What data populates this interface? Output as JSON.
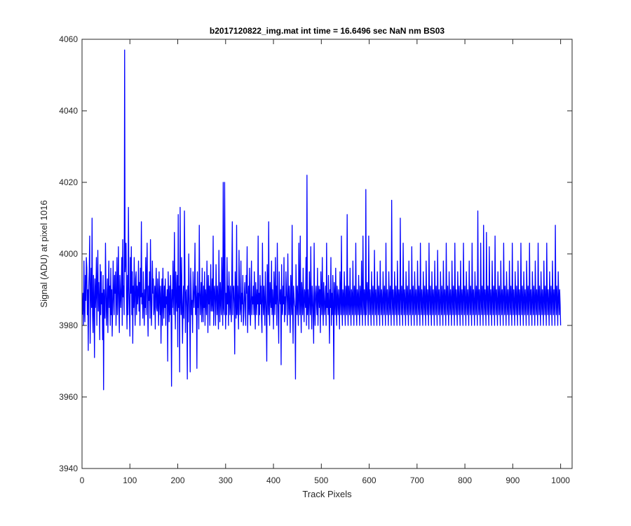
{
  "chart_data": {
    "type": "line",
    "title": "b2017120822_img.mat int time = 16.6496 sec  NaN nm BS03",
    "xlabel": "Track Pixels",
    "ylabel": "Signal (ADU) at pixel 1016",
    "xlim": [
      0,
      1024
    ],
    "ylim": [
      3940,
      4060
    ],
    "xticks": [
      0,
      100,
      200,
      300,
      400,
      500,
      600,
      700,
      800,
      900,
      1000
    ],
    "yticks": [
      3940,
      3960,
      3980,
      4000,
      4020,
      4040,
      4060
    ],
    "grid": false,
    "box": true,
    "series": [
      {
        "color": "#0000ff",
        "x_start": 1,
        "x_step": 1,
        "values": [
          3983,
          3989,
          3980,
          3998,
          3985,
          3981,
          3994,
          3987,
          3999,
          3996,
          3983,
          3990,
          3973,
          3991,
          3995,
          4005,
          3975,
          3989,
          3996,
          3985,
          4010,
          3983,
          3978,
          3994,
          3987,
          3971,
          3993,
          3985,
          3989,
          3999,
          3980,
          3991,
          4001,
          3984,
          3992,
          3987,
          3976,
          3997,
          3983,
          3995,
          3986,
          3989,
          3976,
          3994,
          3962,
          3990,
          3985,
          3982,
          4003,
          3991,
          3980,
          3986,
          3993,
          3978,
          3989,
          3998,
          3985,
          3991,
          3980,
          3996,
          3983,
          3990,
          3977,
          3985,
          3998,
          3988,
          3983,
          3994,
          3989,
          3995,
          3980,
          3987,
          3999,
          3983,
          3990,
          4002,
          3985,
          3978,
          3994,
          3989,
          3985,
          3991,
          3999,
          3980,
          4004,
          3988,
          3991,
          3983,
          4057,
          3995,
          3999,
          4003,
          3987,
          3979,
          3994,
          3983,
          4013,
          3991,
          3985,
          3977,
          3999,
          3989,
          4002,
          3983,
          3995,
          3975,
          3991,
          3985,
          3999,
          3987,
          3980,
          3993,
          3995,
          3983,
          3991,
          3986,
          3989,
          3998,
          3984,
          3992,
          3980,
          3996,
          3988,
          4009,
          3986,
          3989,
          3982,
          3995,
          3987,
          3980,
          3990,
          3985,
          3999,
          3983,
          3993,
          4003,
          3985,
          3977,
          3991,
          3987,
          3995,
          3982,
          4004,
          3989,
          3980,
          3986,
          3998,
          3989,
          3993,
          3983,
          3986,
          3991,
          3979,
          3990,
          3996,
          3985,
          3984,
          3993,
          3986,
          3980,
          3995,
          3988,
          3983,
          3991,
          3975,
          3987,
          3993,
          3980,
          3996,
          3986,
          3982,
          3991,
          3985,
          3993,
          3980,
          3988,
          3986,
          3990,
          3970,
          3995,
          3988,
          3981,
          3991,
          3983,
          3994,
          3987,
          3963,
          3990,
          3985,
          3998,
          3988,
          3983,
          4006,
          3990,
          3979,
          3995,
          3988,
          3984,
          3994,
          3974,
          4011,
          3985,
          3991,
          3967,
          4013,
          3988,
          3983,
          3999,
          3985,
          3975,
          3986,
          3991,
          3982,
          4012,
          3996,
          3978,
          3989,
          3990,
          3985,
          3965,
          3991,
          3981,
          4000,
          3989,
          3983,
          3967,
          3996,
          3990,
          3983,
          3987,
          3978,
          3995,
          3989,
          3985,
          3990,
          4003,
          3983,
          3991,
          3987,
          3968,
          3995,
          3985,
          3989,
          3979,
          4008,
          3990,
          3983,
          3988,
          3992,
          3981,
          3996,
          3986,
          3981,
          3991,
          3985,
          3995,
          3980,
          3990,
          3987,
          3983,
          3998,
          3989,
          3978,
          3994,
          3986,
          3991,
          3980,
          3989,
          3997,
          3984,
          3986,
          3993,
          3984,
          4005,
          3980,
          3989,
          3991,
          3986,
          3980,
          3997,
          3989,
          3983,
          3991,
          3986,
          3979,
          4001,
          3988,
          3981,
          3992,
          3987,
          3983,
          3999,
          3989,
          3980,
          4020,
          3985,
          3983,
          4020,
          3992,
          3979,
          3989,
          3983,
          3999,
          3986,
          3991,
          3980,
          3995,
          3988,
          3983,
          3991,
          3986,
          3981,
          3995,
          4009,
          3983,
          3989,
          3991,
          3986,
          3972,
          3995,
          3989,
          3982,
          4008,
          3983,
          3991,
          3986,
          3979,
          4001,
          3990,
          3983,
          3985,
          3998,
          3981,
          3989,
          3986,
          3994,
          3980,
          3983,
          3988,
          3992,
          3985,
          3980,
          3994,
          3989,
          4002,
          3978,
          3986,
          3991,
          3983,
          3996,
          3985,
          3980,
          3989,
          3998,
          3983,
          3988,
          3986,
          3991,
          3983,
          3995,
          3986,
          3979,
          3992,
          3988,
          3983,
          3990,
          3986,
          4005,
          3980,
          3989,
          3983,
          3994,
          3986,
          3991,
          3982,
          3978,
          4003,
          3988,
          3983,
          3991,
          3986,
          3980,
          3995,
          3988,
          3983,
          3970,
          3997,
          3990,
          3983,
          4009,
          3986,
          3980,
          3992,
          3988,
          3985,
          3998,
          3983,
          3990,
          3986,
          3979,
          3995,
          3988,
          3983,
          3999,
          3986,
          3991,
          3980,
          4003,
          3989,
          3983,
          3975,
          3995,
          3988,
          3986,
          3990,
          3969,
          3997,
          3985,
          3983,
          3991,
          3986,
          3999,
          3981,
          3988,
          3983,
          3995,
          3990,
          3986,
          3980,
          4000,
          3989,
          3983,
          3991,
          3986,
          3978,
          3994,
          3988,
          3983,
          4008,
          3985,
          3975,
          3991,
          3988,
          3986,
          3985,
          3965,
          3997,
          3989,
          3983,
          3991,
          3986,
          3980,
          4003,
          3988,
          3983,
          4005,
          3986,
          3978,
          3992,
          3988,
          3983,
          3996,
          3986,
          3981,
          3990,
          3988,
          3985,
          3999,
          3980,
          4022,
          3983,
          3990,
          3986,
          3979,
          3995,
          3988,
          3983,
          4002,
          3986,
          3979,
          3991,
          3988,
          3983,
          3975,
          4003,
          3985,
          3980,
          3989,
          3991,
          3986,
          3983,
          3996,
          3980,
          3988,
          3991,
          3985,
          3990,
          3978,
          3995,
          3988,
          3983,
          3999,
          3986,
          3980,
          3992,
          3988,
          3983,
          3986,
          3991,
          3980,
          4003,
          3985,
          3989,
          3983,
          3994,
          3986,
          3975,
          3990,
          3985,
          3999,
          3980,
          3989,
          3983,
          3994,
          3986,
          3965,
          3992,
          3988,
          3983,
          3996,
          3986,
          3980,
          3991,
          3988,
          3983,
          3990,
          3986,
          3979,
          3995,
          3988,
          3983,
          4005,
          3986,
          3980,
          3990,
          3988,
          3983,
          3995,
          3986,
          3980,
          3991,
          3988,
          3983,
          4011,
          3986,
          3980,
          3991,
          3988,
          3983,
          3996,
          3986,
          3980,
          3990,
          3988,
          3983,
          3998,
          3986,
          3980,
          3991,
          3988,
          3983,
          4003,
          3986,
          3980,
          3990,
          3988,
          3983,
          3994,
          3986,
          3980,
          3991,
          3988,
          3983,
          3998,
          3986,
          3980,
          4005,
          3988,
          3983,
          3990,
          3986,
          3980,
          4018,
          3983,
          3988,
          3992,
          3986,
          3980,
          4005,
          3988,
          3983,
          3990,
          3986,
          3980,
          3995,
          3988,
          3983,
          3991,
          3986,
          3980,
          4001,
          3988,
          3983,
          3990,
          3986,
          3980,
          3995,
          3988,
          3983,
          3991,
          3986,
          3980,
          3998,
          3988,
          3983,
          3990,
          3986,
          3980,
          3995,
          3988,
          3983,
          3991,
          3986,
          3980,
          4003,
          3988,
          3983,
          3990,
          3986,
          3980,
          3995,
          3988,
          3983,
          3991,
          3986,
          3980,
          4015,
          3988,
          3983,
          3990,
          3986,
          3980,
          3995,
          3988,
          3983,
          3991,
          3986,
          3980,
          3998,
          3988,
          3983,
          3990,
          3986,
          3980,
          4010,
          3988,
          3983,
          3991,
          3986,
          3980,
          4003,
          3988,
          3983,
          3990,
          3986,
          3980,
          3995,
          3988,
          3983,
          3991,
          3986,
          3980,
          3998,
          3988,
          3983,
          3990,
          3986,
          3980,
          4002,
          3988,
          3983,
          3991,
          3986,
          3980,
          3995,
          3988,
          3983,
          3990,
          3986,
          3980,
          3998,
          3988,
          3983,
          3991,
          3986,
          3980,
          4003,
          3988,
          3983,
          3990,
          3986,
          3980,
          3995,
          3988,
          3983,
          3991,
          3986,
          3980,
          3998,
          3988,
          3983,
          3990,
          3986,
          3980,
          4003,
          3988,
          3983,
          3991,
          3986,
          3980,
          3995,
          3988,
          3983,
          3990,
          3986,
          3980,
          3998,
          3988,
          3983,
          3991,
          3986,
          3980,
          4001,
          3988,
          3983,
          3990,
          3986,
          3980,
          3995,
          3988,
          3983,
          3991,
          3986,
          3980,
          3998,
          3988,
          3983,
          3990,
          3986,
          3980,
          4003,
          3988,
          3983,
          3991,
          3986,
          3980,
          3995,
          3988,
          3983,
          3990,
          3986,
          3980,
          3998,
          3988,
          3983,
          3991,
          3986,
          3980,
          4003,
          3988,
          3983,
          3990,
          3986,
          3980,
          3995,
          3988,
          3983,
          3991,
          3986,
          3980,
          3998,
          3988,
          3983,
          3990,
          3986,
          3980,
          4003,
          3988,
          3983,
          3991,
          3986,
          3980,
          3995,
          3988,
          3983,
          3990,
          3986,
          3980,
          3998,
          3988,
          3983,
          3991,
          3986,
          3980,
          4003,
          3988,
          3983,
          3990,
          3986,
          3980,
          3995,
          3988,
          3983,
          3991,
          3986,
          3980,
          4012,
          3988,
          3983,
          3990,
          3986,
          3980,
          4003,
          3988,
          3983,
          3991,
          3986,
          3980,
          4008,
          3988,
          3983,
          3990,
          3986,
          3980,
          4006,
          3988,
          3983,
          3991,
          3986,
          3980,
          4002,
          3988,
          3983,
          3990,
          3986,
          3980,
          3998,
          3988,
          3983,
          3991,
          3986,
          3980,
          4005,
          3988,
          3983,
          3990,
          3986,
          3980,
          3995,
          3988,
          3983,
          3991,
          3986,
          3980,
          3998,
          3988,
          3983,
          3990,
          3986,
          3980,
          4003,
          3988,
          3983,
          3991,
          3986,
          3980,
          3995,
          3988,
          3983,
          3990,
          3986,
          3980,
          3998,
          3988,
          3983,
          3991,
          3986,
          3980,
          4003,
          3988,
          3983,
          3990,
          3986,
          3980,
          3995,
          3988,
          3983,
          3991,
          3986,
          3980,
          3998,
          3988,
          3983,
          3990,
          3986,
          3980,
          4003,
          3988,
          3983,
          3991,
          3986,
          3980,
          3995,
          3988,
          3983,
          3990,
          3986,
          3980,
          3998,
          3988,
          3983,
          3991,
          3986,
          3980,
          4003,
          3988,
          3983,
          3990,
          3986,
          3980,
          3995,
          3988,
          3983,
          3991,
          3986,
          3980,
          3998,
          3988,
          3983,
          3990,
          3986,
          3980,
          4003,
          3988,
          3983,
          3991,
          3986,
          3980,
          3995,
          3988,
          3983,
          3990,
          3986,
          3980,
          3998,
          3988,
          3983,
          3991,
          3986,
          3980,
          4003,
          3988,
          3983,
          3990,
          3986,
          3980,
          3995,
          3988,
          3983,
          3991,
          3986,
          3980,
          3998,
          3988,
          3983,
          3990,
          3986,
          3980,
          4008,
          3988,
          3983,
          3991,
          3986,
          3980,
          3995,
          3988,
          3983,
          3990,
          3986,
          3980
        ]
      }
    ]
  }
}
